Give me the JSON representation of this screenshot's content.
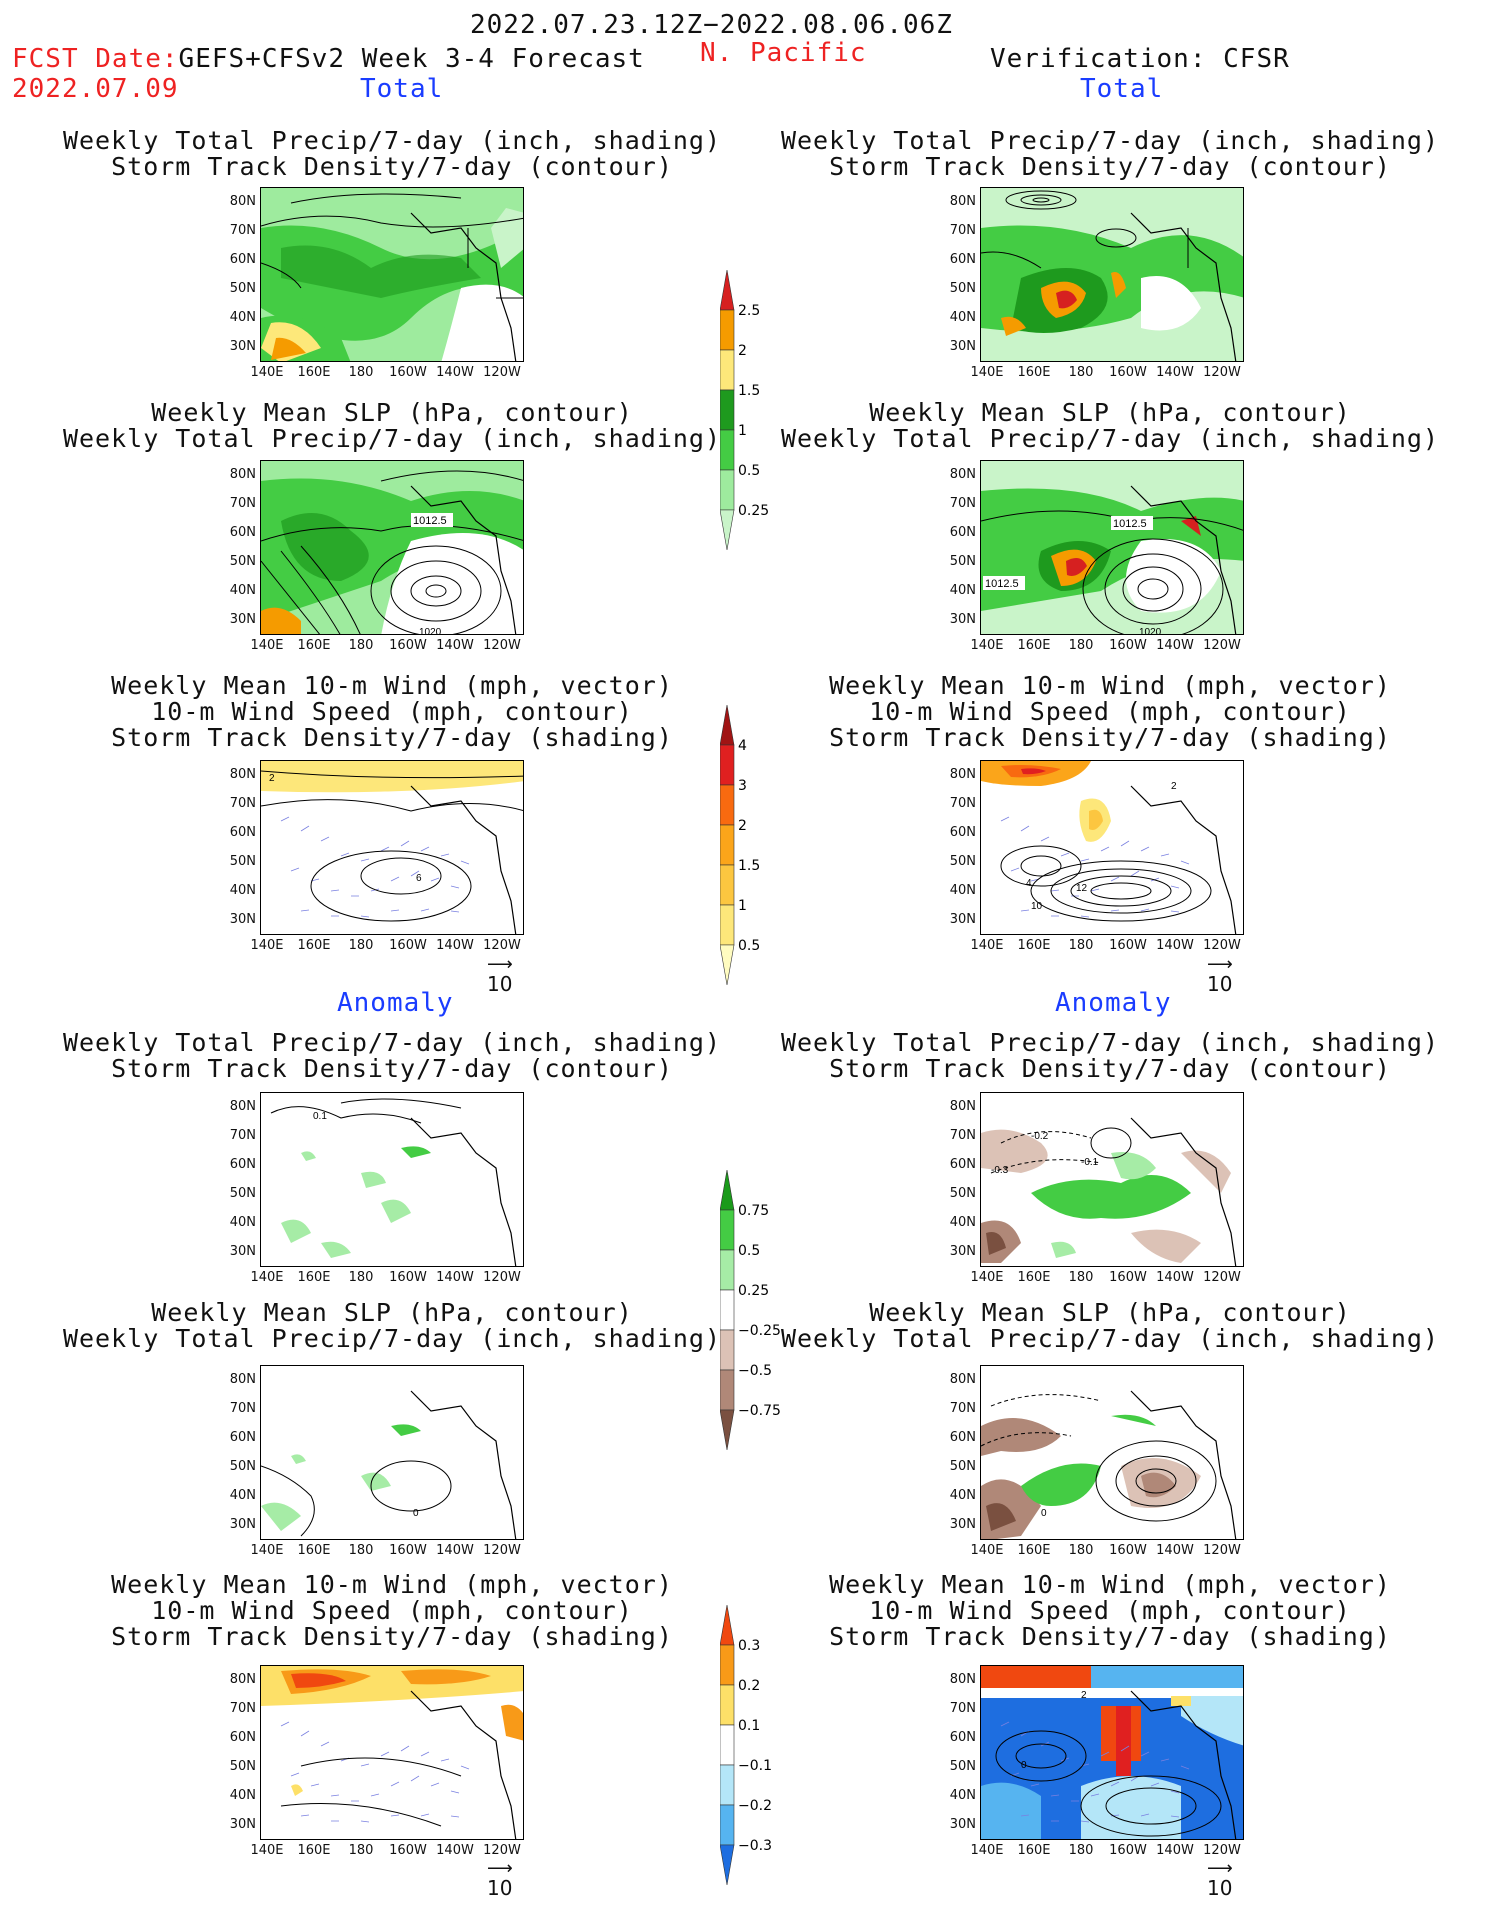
{
  "header": {
    "date_range": "2022.07.23.12Z−2022.08.06.06Z",
    "fcst_label": "FCST Date:",
    "fcst_model": "GEFS+CFSv2 Week 3-4 Forecast",
    "fcst_date": "2022.07.09",
    "region": "N. Pacific",
    "verification": "Verification: CFSR"
  },
  "sections": {
    "total_left": "Total",
    "total_right": "Total",
    "anomaly_left": "Anomaly",
    "anomaly_right": "Anomaly"
  },
  "panel_titles": {
    "precip_storm": [
      "Weekly Total Precip/7-day (inch, shading)",
      "Storm Track Density/7-day (contour)"
    ],
    "slp_precip": [
      "Weekly Mean SLP (hPa, contour)",
      "Weekly Total Precip/7-day (inch, shading)"
    ],
    "wind": [
      "Weekly Mean 10-m Wind (mph, vector)",
      "10-m Wind Speed (mph, contour)",
      "Storm Track Density/7-day (shading)"
    ]
  },
  "axes": {
    "lat_ticks": [
      "80N",
      "70N",
      "60N",
      "50N",
      "40N",
      "30N"
    ],
    "lon_ticks": [
      "140E",
      "160E",
      "180",
      "160W",
      "140W",
      "120W"
    ]
  },
  "reference_vector": "10",
  "contour_labels": {
    "slp_1012": "1012.5",
    "slp_1020": "1020",
    "wind_2": "2",
    "wind_6": "6",
    "wind_4": "4",
    "wind_12": "12",
    "wind_10": "10",
    "anom_01": "0.1",
    "anom_m02": "-0.2",
    "anom_m01": "-0.1",
    "anom_m03": "-0.3",
    "anom_0": "0"
  },
  "colorbars": {
    "precip_total": {
      "labels": [
        "2.5",
        "2",
        "1.5",
        "1",
        "0.5",
        "0.25"
      ],
      "colors": [
        "#d62020",
        "#f59b00",
        "#fde87a",
        "#1e9a1e",
        "#44cc44",
        "#9eeb9e",
        "#c9f4c9"
      ]
    },
    "storm_total": {
      "labels": [
        "4",
        "3",
        "2",
        "1.5",
        "1",
        "0.5"
      ],
      "colors": [
        "#a01414",
        "#e02020",
        "#f86a10",
        "#fba51a",
        "#fcc640",
        "#fde77a",
        "#fffcc0"
      ]
    },
    "precip_anom": {
      "labels": [
        "0.75",
        "0.5",
        "0.25",
        "−0.25",
        "−0.5",
        "−0.75"
      ],
      "colors": [
        "#1a9a1a",
        "#44cc44",
        "#a6eca6",
        "#ffffff",
        "#dcc2b6",
        "#b08878",
        "#7a5040"
      ]
    },
    "storm_anom": {
      "labels": [
        "0.3",
        "0.2",
        "0.1",
        "−0.1",
        "−0.2",
        "−0.3"
      ],
      "colors": [
        "#f04810",
        "#f89a18",
        "#fde068",
        "#ffffff",
        "#b4e6f8",
        "#56b4f0",
        "#1e6ee0"
      ]
    }
  }
}
